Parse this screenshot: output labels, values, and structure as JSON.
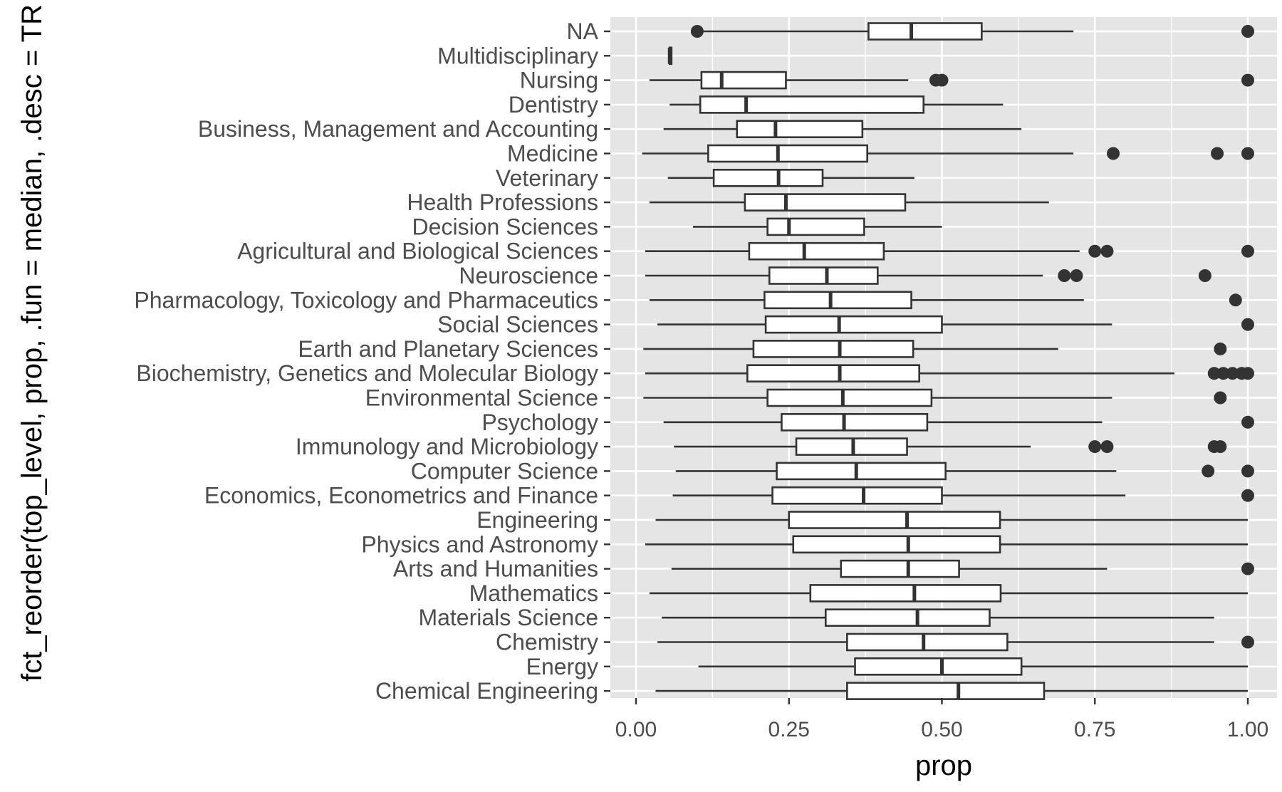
{
  "chart_data": {
    "type": "boxplot",
    "orientation": "horizontal",
    "xlabel": "prop",
    "ylabel": "fct_reorder(top_level, prop, .fun = median, .desc = TR",
    "xlim": [
      -0.04,
      1.05
    ],
    "x_ticks": [
      0,
      0.25,
      0.5,
      0.75,
      1
    ],
    "x_tick_labels": [
      "0.00",
      "0.25",
      "0.50",
      "0.75",
      "1.00"
    ],
    "grid": true,
    "colors": {
      "panel_bg": "#e5e5e5",
      "grid": "#ffffff",
      "box_fill": "#ffffff",
      "stroke": "#333333",
      "outlier": "#333333",
      "tick_label": "#4d4d4d"
    },
    "categories": [
      {
        "label": "NA",
        "whisker_low": 0.1,
        "q1": 0.38,
        "median": 0.45,
        "q3": 0.565,
        "whisker_high": 0.715,
        "outliers": [
          0.1,
          1.0
        ]
      },
      {
        "label": "Multidisciplinary",
        "whisker_low": 0.055,
        "q1": 0.055,
        "median": 0.055,
        "q3": 0.058,
        "whisker_high": 0.058,
        "outliers": []
      },
      {
        "label": "Nursing",
        "whisker_low": 0.022,
        "q1": 0.107,
        "median": 0.14,
        "q3": 0.245,
        "whisker_high": 0.445,
        "outliers": [
          0.49,
          0.5,
          1.0
        ]
      },
      {
        "label": "Dentistry",
        "whisker_low": 0.055,
        "q1": 0.105,
        "median": 0.18,
        "q3": 0.47,
        "whisker_high": 0.6,
        "outliers": []
      },
      {
        "label": "Business, Management and Accounting",
        "whisker_low": 0.045,
        "q1": 0.165,
        "median": 0.228,
        "q3": 0.37,
        "whisker_high": 0.63,
        "outliers": []
      },
      {
        "label": "Medicine",
        "whisker_low": 0.01,
        "q1": 0.118,
        "median": 0.232,
        "q3": 0.378,
        "whisker_high": 0.715,
        "outliers": [
          0.78,
          0.95,
          1.0
        ]
      },
      {
        "label": "Veterinary",
        "whisker_low": 0.052,
        "q1": 0.127,
        "median": 0.233,
        "q3": 0.305,
        "whisker_high": 0.455,
        "outliers": []
      },
      {
        "label": "Health Professions",
        "whisker_low": 0.022,
        "q1": 0.178,
        "median": 0.245,
        "q3": 0.44,
        "whisker_high": 0.675,
        "outliers": []
      },
      {
        "label": "Decision Sciences",
        "whisker_low": 0.093,
        "q1": 0.215,
        "median": 0.25,
        "q3": 0.373,
        "whisker_high": 0.5,
        "outliers": []
      },
      {
        "label": "Agricultural and Biological Sciences",
        "whisker_low": 0.015,
        "q1": 0.185,
        "median": 0.275,
        "q3": 0.405,
        "whisker_high": 0.725,
        "outliers": [
          0.75,
          0.77,
          1.0
        ]
      },
      {
        "label": "Neuroscience",
        "whisker_low": 0.015,
        "q1": 0.218,
        "median": 0.312,
        "q3": 0.395,
        "whisker_high": 0.665,
        "outliers": [
          0.7,
          0.72,
          0.93
        ]
      },
      {
        "label": "Pharmacology, Toxicology and Pharmaceutics",
        "whisker_low": 0.022,
        "q1": 0.21,
        "median": 0.318,
        "q3": 0.45,
        "whisker_high": 0.732,
        "outliers": [
          0.98
        ]
      },
      {
        "label": "Social Sciences",
        "whisker_low": 0.035,
        "q1": 0.212,
        "median": 0.332,
        "q3": 0.5,
        "whisker_high": 0.778,
        "outliers": [
          1.0
        ]
      },
      {
        "label": "Earth and Planetary Sciences",
        "whisker_low": 0.012,
        "q1": 0.192,
        "median": 0.333,
        "q3": 0.453,
        "whisker_high": 0.69,
        "outliers": [
          0.955
        ]
      },
      {
        "label": "Biochemistry, Genetics and Molecular Biology",
        "whisker_low": 0.015,
        "q1": 0.182,
        "median": 0.333,
        "q3": 0.463,
        "whisker_high": 0.88,
        "outliers": [
          0.945,
          0.96,
          0.975,
          0.99,
          1.0
        ]
      },
      {
        "label": "Environmental Science",
        "whisker_low": 0.012,
        "q1": 0.215,
        "median": 0.338,
        "q3": 0.483,
        "whisker_high": 0.778,
        "outliers": [
          0.955
        ]
      },
      {
        "label": "Psychology",
        "whisker_low": 0.045,
        "q1": 0.238,
        "median": 0.34,
        "q3": 0.476,
        "whisker_high": 0.762,
        "outliers": [
          1.0
        ]
      },
      {
        "label": "Immunology and Microbiology",
        "whisker_low": 0.062,
        "q1": 0.262,
        "median": 0.355,
        "q3": 0.443,
        "whisker_high": 0.645,
        "outliers": [
          0.75,
          0.77,
          0.945,
          0.955
        ]
      },
      {
        "label": "Computer Science",
        "whisker_low": 0.065,
        "q1": 0.23,
        "median": 0.36,
        "q3": 0.506,
        "whisker_high": 0.785,
        "outliers": [
          0.935,
          1.0
        ]
      },
      {
        "label": "Economics, Econometrics and Finance",
        "whisker_low": 0.06,
        "q1": 0.223,
        "median": 0.372,
        "q3": 0.5,
        "whisker_high": 0.8,
        "outliers": [
          1.0
        ]
      },
      {
        "label": "Engineering",
        "whisker_low": 0.032,
        "q1": 0.25,
        "median": 0.443,
        "q3": 0.595,
        "whisker_high": 1.0,
        "outliers": []
      },
      {
        "label": "Physics and Astronomy",
        "whisker_low": 0.015,
        "q1": 0.257,
        "median": 0.445,
        "q3": 0.595,
        "whisker_high": 1.0,
        "outliers": []
      },
      {
        "label": "Arts and Humanities",
        "whisker_low": 0.058,
        "q1": 0.335,
        "median": 0.445,
        "q3": 0.528,
        "whisker_high": 0.77,
        "outliers": [
          1.0
        ]
      },
      {
        "label": "Mathematics",
        "whisker_low": 0.022,
        "q1": 0.285,
        "median": 0.455,
        "q3": 0.596,
        "whisker_high": 1.0,
        "outliers": []
      },
      {
        "label": "Materials Science",
        "whisker_low": 0.042,
        "q1": 0.31,
        "median": 0.46,
        "q3": 0.578,
        "whisker_high": 0.945,
        "outliers": []
      },
      {
        "label": "Chemistry",
        "whisker_low": 0.035,
        "q1": 0.345,
        "median": 0.47,
        "q3": 0.607,
        "whisker_high": 0.945,
        "outliers": [
          1.0
        ]
      },
      {
        "label": "Energy",
        "whisker_low": 0.102,
        "q1": 0.358,
        "median": 0.5,
        "q3": 0.63,
        "whisker_high": 1.0,
        "outliers": []
      },
      {
        "label": "Chemical Engineering",
        "whisker_low": 0.032,
        "q1": 0.345,
        "median": 0.527,
        "q3": 0.667,
        "whisker_high": 1.0,
        "outliers": []
      }
    ]
  }
}
